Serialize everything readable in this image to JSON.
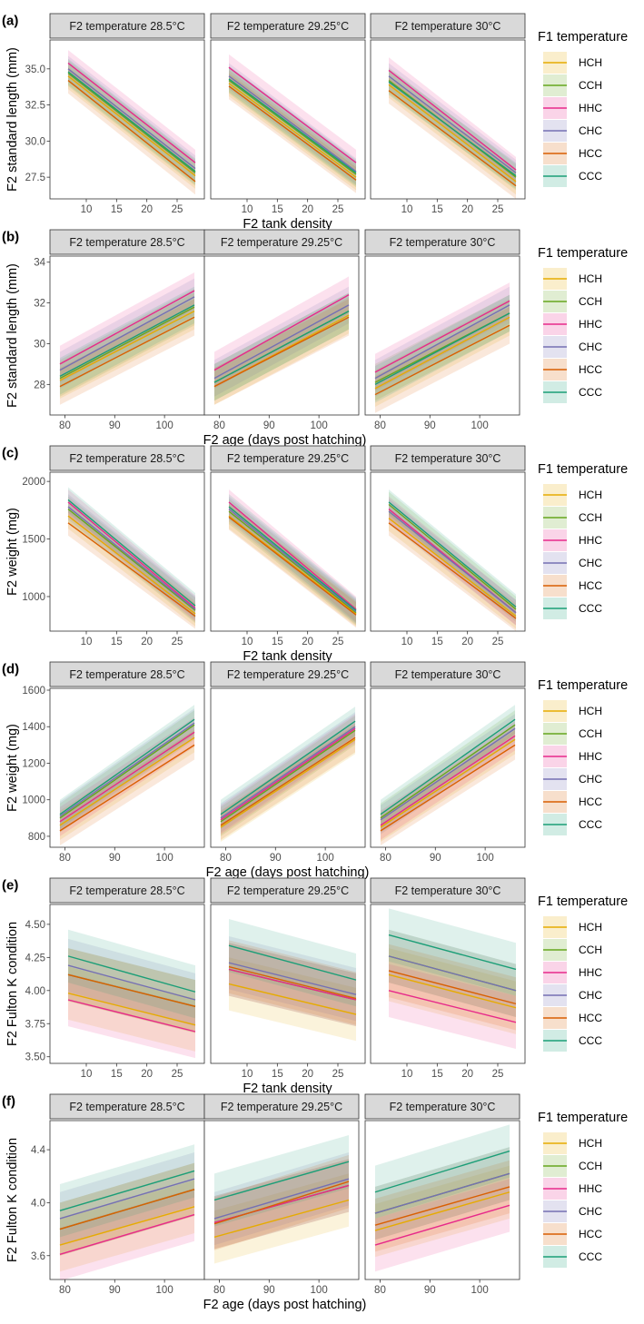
{
  "colors": {
    "HCH": "#E6AB02",
    "CCH": "#66A61E",
    "HHC": "#E7298A",
    "CHC": "#7570B3",
    "HCC": "#D95F02",
    "CCC": "#1B9E77"
  },
  "legend": {
    "title": "F1 temperature",
    "items": [
      "HCH",
      "CCH",
      "HHC",
      "CHC",
      "HCC",
      "CCC"
    ]
  },
  "chart_data": [
    {
      "letter": "(a)",
      "type": "line",
      "ylabel": "F2 standard length (mm)",
      "xlabel": "F2 tank density",
      "facets": [
        "F2 temperature 28.5°C",
        "F2 temperature 29.25°C",
        "F2 temperature 30°C"
      ],
      "xlim": [
        4,
        29.5
      ],
      "ylim": [
        26,
        37
      ],
      "xticks": [
        10,
        15,
        20,
        25
      ],
      "xtick_labels": [
        "10",
        "15",
        "20",
        "25"
      ],
      "yticks": [
        27.5,
        30,
        32.5,
        35
      ],
      "ytick_labels": [
        "27.5",
        "30.0",
        "32.5",
        "35.0"
      ],
      "x_range": [
        7,
        28
      ],
      "band": 0.9,
      "series": [
        [
          {
            "name": "HCH",
            "start": 34.5,
            "end": 27.6
          },
          {
            "name": "CCH",
            "start": 34.7,
            "end": 27.8
          },
          {
            "name": "HHC",
            "start": 35.4,
            "end": 28.5
          },
          {
            "name": "CHC",
            "start": 35.0,
            "end": 28.1
          },
          {
            "name": "HCC",
            "start": 34.2,
            "end": 27.2
          },
          {
            "name": "CCC",
            "start": 34.8,
            "end": 27.9
          }
        ],
        [
          {
            "name": "HCH",
            "start": 34.0,
            "end": 27.5
          },
          {
            "name": "CCH",
            "start": 34.2,
            "end": 27.7
          },
          {
            "name": "HHC",
            "start": 35.1,
            "end": 28.5
          },
          {
            "name": "CHC",
            "start": 34.5,
            "end": 27.9
          },
          {
            "name": "HCC",
            "start": 33.8,
            "end": 27.3
          },
          {
            "name": "CCC",
            "start": 34.3,
            "end": 27.8
          }
        ],
        [
          {
            "name": "HCH",
            "start": 33.9,
            "end": 27.2
          },
          {
            "name": "CCH",
            "start": 34.2,
            "end": 27.5
          },
          {
            "name": "HHC",
            "start": 34.9,
            "end": 28.0
          },
          {
            "name": "CHC",
            "start": 34.5,
            "end": 27.8
          },
          {
            "name": "HCC",
            "start": 33.5,
            "end": 26.9
          },
          {
            "name": "CCC",
            "start": 34.1,
            "end": 27.6
          }
        ]
      ]
    },
    {
      "letter": "(b)",
      "type": "line",
      "ylabel": "F2 standard length (mm)",
      "xlabel": "F2 age (days post hatching)",
      "facets": [
        "F2 temperature 28.5°C",
        "F2 temperature 29.25°C",
        "F2 temperature 30°C"
      ],
      "xlim": [
        77,
        108
      ],
      "ylim": [
        26.5,
        34.3
      ],
      "xticks": [
        80,
        90,
        100
      ],
      "xtick_labels": [
        "80",
        "90",
        "100"
      ],
      "yticks": [
        28,
        30,
        32,
        34
      ],
      "ytick_labels": [
        "28",
        "30",
        "32",
        "34"
      ],
      "x_range": [
        79,
        106
      ],
      "band": 0.9,
      "series": [
        [
          {
            "name": "HCH",
            "start": 28.2,
            "end": 31.6
          },
          {
            "name": "CCH",
            "start": 28.3,
            "end": 31.8
          },
          {
            "name": "HHC",
            "start": 29.0,
            "end": 32.6
          },
          {
            "name": "CHC",
            "start": 28.7,
            "end": 32.3
          },
          {
            "name": "HCC",
            "start": 27.9,
            "end": 31.3
          },
          {
            "name": "CCC",
            "start": 28.4,
            "end": 31.9
          }
        ],
        [
          {
            "name": "HCH",
            "start": 27.9,
            "end": 31.4
          },
          {
            "name": "CCH",
            "start": 28.1,
            "end": 31.6
          },
          {
            "name": "HHC",
            "start": 28.7,
            "end": 32.4
          },
          {
            "name": "CHC",
            "start": 28.3,
            "end": 31.9
          },
          {
            "name": "HCC",
            "start": 27.9,
            "end": 31.3
          },
          {
            "name": "CCC",
            "start": 28.1,
            "end": 31.6
          }
        ],
        [
          {
            "name": "HCH",
            "start": 27.8,
            "end": 31.3
          },
          {
            "name": "CCH",
            "start": 28.1,
            "end": 31.5
          },
          {
            "name": "HHC",
            "start": 28.6,
            "end": 32.1
          },
          {
            "name": "CHC",
            "start": 28.3,
            "end": 31.9
          },
          {
            "name": "HCC",
            "start": 27.5,
            "end": 30.9
          },
          {
            "name": "CCC",
            "start": 28.0,
            "end": 31.5
          }
        ]
      ]
    },
    {
      "letter": "(c)",
      "type": "line",
      "ylabel": "F2 weight (mg)",
      "xlabel": "F2 tank density",
      "facets": [
        "F2 temperature 28.5°C",
        "F2 temperature 29.25°C",
        "F2 temperature 30°C"
      ],
      "xlim": [
        4,
        29.5
      ],
      "ylim": [
        700,
        2080
      ],
      "xticks": [
        10,
        15,
        20,
        25
      ],
      "xtick_labels": [
        "10",
        "15",
        "20",
        "25"
      ],
      "yticks": [
        1000,
        1500,
        2000
      ],
      "ytick_labels": [
        "1000",
        "1500",
        "2000"
      ],
      "x_range": [
        7,
        28
      ],
      "band": 110,
      "series": [
        [
          {
            "name": "HCH",
            "start": 1700,
            "end": 850
          },
          {
            "name": "CCH",
            "start": 1760,
            "end": 880
          },
          {
            "name": "HHC",
            "start": 1820,
            "end": 900
          },
          {
            "name": "CHC",
            "start": 1780,
            "end": 890
          },
          {
            "name": "HCC",
            "start": 1640,
            "end": 830
          },
          {
            "name": "CCC",
            "start": 1840,
            "end": 920
          }
        ],
        [
          {
            "name": "HCH",
            "start": 1700,
            "end": 850
          },
          {
            "name": "CCH",
            "start": 1740,
            "end": 860
          },
          {
            "name": "HHC",
            "start": 1820,
            "end": 890
          },
          {
            "name": "CHC",
            "start": 1760,
            "end": 870
          },
          {
            "name": "HCC",
            "start": 1690,
            "end": 840
          },
          {
            "name": "CCC",
            "start": 1780,
            "end": 880
          }
        ],
        [
          {
            "name": "HCH",
            "start": 1680,
            "end": 830
          },
          {
            "name": "CCH",
            "start": 1800,
            "end": 890
          },
          {
            "name": "HHC",
            "start": 1760,
            "end": 860
          },
          {
            "name": "CHC",
            "start": 1740,
            "end": 860
          },
          {
            "name": "HCC",
            "start": 1640,
            "end": 810
          },
          {
            "name": "CCC",
            "start": 1820,
            "end": 910
          }
        ]
      ]
    },
    {
      "letter": "(d)",
      "type": "line",
      "ylabel": "F2 weight (mg)",
      "xlabel": "F2 age (days post hatching)",
      "facets": [
        "F2 temperature 28.5°C",
        "F2 temperature 29.25°C",
        "F2 temperature 30°C"
      ],
      "xlim": [
        77,
        108
      ],
      "ylim": [
        740,
        1610
      ],
      "xticks": [
        80,
        90,
        100
      ],
      "xtick_labels": [
        "80",
        "90",
        "100"
      ],
      "yticks": [
        800,
        1000,
        1200,
        1400,
        1600
      ],
      "ytick_labels": [
        "800",
        "1000",
        "1200",
        "1400",
        "1600"
      ],
      "x_range": [
        79,
        106
      ],
      "band": 80,
      "series": [
        [
          {
            "name": "HCH",
            "start": 860,
            "end": 1340
          },
          {
            "name": "CCH",
            "start": 900,
            "end": 1410
          },
          {
            "name": "HHC",
            "start": 880,
            "end": 1370
          },
          {
            "name": "CHC",
            "start": 910,
            "end": 1420
          },
          {
            "name": "HCC",
            "start": 830,
            "end": 1300
          },
          {
            "name": "CCC",
            "start": 920,
            "end": 1440
          }
        ],
        [
          {
            "name": "HCH",
            "start": 850,
            "end": 1330
          },
          {
            "name": "CCH",
            "start": 880,
            "end": 1380
          },
          {
            "name": "HHC",
            "start": 890,
            "end": 1390
          },
          {
            "name": "CHC",
            "start": 900,
            "end": 1400
          },
          {
            "name": "HCC",
            "start": 860,
            "end": 1340
          },
          {
            "name": "CCC",
            "start": 920,
            "end": 1430
          }
        ],
        [
          {
            "name": "HCH",
            "start": 850,
            "end": 1330
          },
          {
            "name": "CCH",
            "start": 900,
            "end": 1410
          },
          {
            "name": "HHC",
            "start": 860,
            "end": 1350
          },
          {
            "name": "CHC",
            "start": 890,
            "end": 1390
          },
          {
            "name": "HCC",
            "start": 830,
            "end": 1300
          },
          {
            "name": "CCC",
            "start": 920,
            "end": 1440
          }
        ]
      ]
    },
    {
      "letter": "(e)",
      "type": "line",
      "ylabel": "F2 Fulton K condition",
      "xlabel": "F2 tank density",
      "facets": [
        "F2 temperature 28.5°C",
        "F2 temperature 29.25°C",
        "F2 temperature 30°C"
      ],
      "xlim": [
        4,
        29.5
      ],
      "ylim": [
        3.45,
        4.65
      ],
      "xticks": [
        10,
        15,
        20,
        25
      ],
      "xtick_labels": [
        "10",
        "15",
        "20",
        "25"
      ],
      "yticks": [
        3.5,
        3.75,
        4.0,
        4.25,
        4.5
      ],
      "ytick_labels": [
        "3.50",
        "3.75",
        "4.00",
        "4.25",
        "4.50"
      ],
      "x_range": [
        7,
        28
      ],
      "band": 0.2,
      "series": [
        [
          {
            "name": "HCH",
            "start": 3.98,
            "end": 3.74
          },
          {
            "name": "CCH",
            "start": 4.12,
            "end": 3.88
          },
          {
            "name": "HHC",
            "start": 3.93,
            "end": 3.69
          },
          {
            "name": "CHC",
            "start": 4.19,
            "end": 3.93
          },
          {
            "name": "HCC",
            "start": 4.12,
            "end": 3.88
          },
          {
            "name": "CCC",
            "start": 4.26,
            "end": 3.99
          }
        ],
        [
          {
            "name": "HCH",
            "start": 4.05,
            "end": 3.82
          },
          {
            "name": "CCH",
            "start": 4.16,
            "end": 3.93
          },
          {
            "name": "HHC",
            "start": 4.16,
            "end": 3.93
          },
          {
            "name": "CHC",
            "start": 4.21,
            "end": 3.97
          },
          {
            "name": "HCC",
            "start": 4.18,
            "end": 3.94
          },
          {
            "name": "CCC",
            "start": 4.34,
            "end": 4.08
          }
        ],
        [
          {
            "name": "HCH",
            "start": 4.12,
            "end": 3.87
          },
          {
            "name": "CCH",
            "start": 4.26,
            "end": 4.0
          },
          {
            "name": "HHC",
            "start": 4.0,
            "end": 3.76
          },
          {
            "name": "CHC",
            "start": 4.26,
            "end": 4.0
          },
          {
            "name": "HCC",
            "start": 4.15,
            "end": 3.9
          },
          {
            "name": "CCC",
            "start": 4.42,
            "end": 4.16
          }
        ]
      ]
    },
    {
      "letter": "(f)",
      "type": "line",
      "ylabel": "F2 Fulton K condition",
      "xlabel": "F2 age (days post hatching)",
      "facets": [
        "F2 temperature 28.5°C",
        "F2 temperature 29.25°C",
        "F2 temperature 30°C"
      ],
      "xlim": [
        77,
        108
      ],
      "ylim": [
        3.42,
        4.62
      ],
      "xticks": [
        80,
        90,
        100
      ],
      "xtick_labels": [
        "80",
        "90",
        "100"
      ],
      "yticks": [
        3.6,
        4.0,
        4.4
      ],
      "ytick_labels": [
        "3.6",
        "4.0",
        "4.4"
      ],
      "x_range": [
        79,
        106
      ],
      "band": 0.2,
      "series": [
        [
          {
            "name": "HCH",
            "start": 3.68,
            "end": 3.97
          },
          {
            "name": "CCH",
            "start": 3.8,
            "end": 4.1
          },
          {
            "name": "HHC",
            "start": 3.61,
            "end": 3.91
          },
          {
            "name": "CHC",
            "start": 3.88,
            "end": 4.18
          },
          {
            "name": "HCC",
            "start": 3.8,
            "end": 4.1
          },
          {
            "name": "CCC",
            "start": 3.94,
            "end": 4.24
          }
        ],
        [
          {
            "name": "HCH",
            "start": 3.74,
            "end": 4.02
          },
          {
            "name": "CCH",
            "start": 3.85,
            "end": 4.13
          },
          {
            "name": "HHC",
            "start": 3.85,
            "end": 4.13
          },
          {
            "name": "CHC",
            "start": 3.88,
            "end": 4.18
          },
          {
            "name": "HCC",
            "start": 3.84,
            "end": 4.16
          },
          {
            "name": "CCC",
            "start": 4.02,
            "end": 4.31
          }
        ],
        [
          {
            "name": "HCH",
            "start": 3.79,
            "end": 4.08
          },
          {
            "name": "CCH",
            "start": 3.92,
            "end": 4.22
          },
          {
            "name": "HHC",
            "start": 3.68,
            "end": 3.98
          },
          {
            "name": "CHC",
            "start": 3.92,
            "end": 4.22
          },
          {
            "name": "HCC",
            "start": 3.83,
            "end": 4.12
          },
          {
            "name": "CCC",
            "start": 4.08,
            "end": 4.39
          }
        ]
      ]
    }
  ]
}
